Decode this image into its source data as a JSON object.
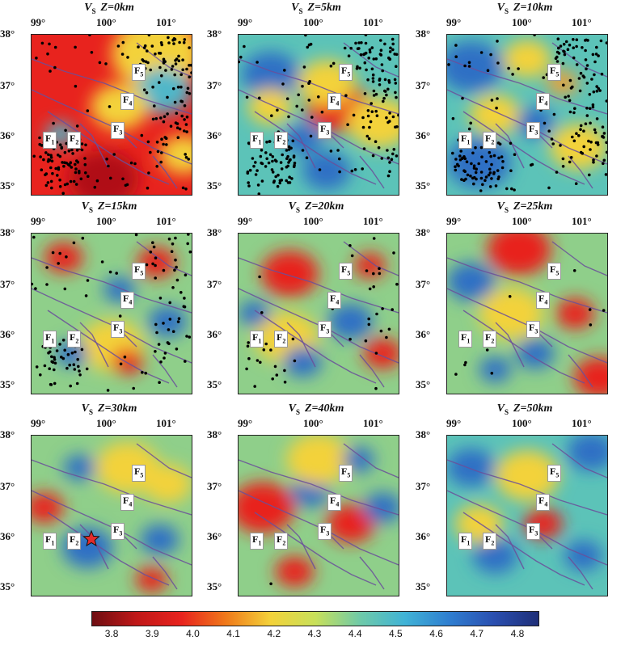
{
  "panels": [
    {
      "vs_label": "V",
      "vs_sub": "S",
      "depth_label": "Z=0km",
      "base": "#e8231e",
      "blobs": [
        [
          "#f3d23a",
          0.78,
          0.12,
          0.28
        ],
        [
          "#4fb7c9",
          0.82,
          0.35,
          0.18
        ],
        [
          "#f3d23a",
          0.55,
          0.45,
          0.18
        ],
        [
          "#b01018",
          0.45,
          0.9,
          0.22
        ],
        [
          "#4fb7c9",
          0.18,
          0.62,
          0.09
        ],
        [
          "#f3d23a",
          0.95,
          0.75,
          0.15
        ]
      ],
      "dots": "dense"
    },
    {
      "vs_label": "V",
      "vs_sub": "S",
      "depth_label": "Z=5km",
      "base": "#5cc3b8",
      "blobs": [
        [
          "#e8231e",
          0.62,
          0.45,
          0.2
        ],
        [
          "#f3d23a",
          0.55,
          0.3,
          0.18
        ],
        [
          "#2f6fc5",
          0.2,
          0.25,
          0.18
        ],
        [
          "#f3d23a",
          0.2,
          0.45,
          0.14
        ],
        [
          "#2f6fc5",
          0.55,
          0.85,
          0.15
        ],
        [
          "#f3d23a",
          0.88,
          0.55,
          0.2
        ],
        [
          "#2f6fc5",
          0.4,
          0.65,
          0.12
        ]
      ],
      "dots": "dense"
    },
    {
      "vs_label": "V",
      "vs_sub": "S",
      "depth_label": "Z=10km",
      "base": "#5cc3b8",
      "blobs": [
        [
          "#2f6fc5",
          0.15,
          0.2,
          0.2
        ],
        [
          "#f3d23a",
          0.5,
          0.15,
          0.15
        ],
        [
          "#f3d23a",
          0.3,
          0.5,
          0.16
        ],
        [
          "#2f6fc5",
          0.2,
          0.8,
          0.2
        ],
        [
          "#e8a13a",
          0.72,
          0.3,
          0.1
        ],
        [
          "#f3d23a",
          0.82,
          0.7,
          0.18
        ],
        [
          "#2f6fc5",
          0.55,
          0.55,
          0.12
        ]
      ],
      "dots": "dense"
    },
    {
      "vs_label": "V",
      "vs_sub": "S",
      "depth_label": "Z=15km",
      "base": "#8fcf8a",
      "blobs": [
        [
          "#e8231e",
          0.2,
          0.15,
          0.12
        ],
        [
          "#e8231e",
          0.78,
          0.18,
          0.12
        ],
        [
          "#2f6fc5",
          0.55,
          0.35,
          0.1
        ],
        [
          "#f3d23a",
          0.5,
          0.7,
          0.2
        ],
        [
          "#2f6fc5",
          0.85,
          0.55,
          0.12
        ],
        [
          "#e8231e",
          0.6,
          0.8,
          0.1
        ],
        [
          "#2f6fc5",
          0.25,
          0.75,
          0.1
        ]
      ],
      "dots": "medium"
    },
    {
      "vs_label": "V",
      "vs_sub": "S",
      "depth_label": "Z=20km",
      "base": "#8fcf8a",
      "blobs": [
        [
          "#e8231e",
          0.32,
          0.25,
          0.18
        ],
        [
          "#2f6fc5",
          0.7,
          0.55,
          0.14
        ],
        [
          "#e8231e",
          0.82,
          0.2,
          0.1
        ],
        [
          "#f3d23a",
          0.3,
          0.65,
          0.2
        ],
        [
          "#2f6fc5",
          0.4,
          0.8,
          0.12
        ],
        [
          "#e8231e",
          0.9,
          0.75,
          0.12
        ],
        [
          "#2f6fc5",
          0.1,
          0.5,
          0.1
        ]
      ],
      "dots": "sparse"
    },
    {
      "vs_label": "V",
      "vs_sub": "S",
      "depth_label": "Z=25km",
      "base": "#8fcf8a",
      "blobs": [
        [
          "#e8231e",
          0.45,
          0.1,
          0.2
        ],
        [
          "#2f6fc5",
          0.15,
          0.3,
          0.15
        ],
        [
          "#e8231e",
          0.8,
          0.5,
          0.12
        ],
        [
          "#2f6fc5",
          0.55,
          0.75,
          0.12
        ],
        [
          "#e8231e",
          0.95,
          0.9,
          0.16
        ],
        [
          "#f3d23a",
          0.4,
          0.5,
          0.2
        ],
        [
          "#2f6fc5",
          0.3,
          0.85,
          0.1
        ]
      ],
      "dots": "few"
    },
    {
      "vs_label": "V",
      "vs_sub": "S",
      "depth_label": "Z=30km",
      "base": "#8fcf8a",
      "blobs": [
        [
          "#e8231e",
          0.08,
          0.45,
          0.12
        ],
        [
          "#2f6fc5",
          0.35,
          0.7,
          0.16
        ],
        [
          "#f3d23a",
          0.6,
          0.2,
          0.2
        ],
        [
          "#2f6fc5",
          0.8,
          0.65,
          0.12
        ],
        [
          "#f3d23a",
          0.85,
          0.3,
          0.15
        ],
        [
          "#2f6fc5",
          0.3,
          0.2,
          0.1
        ],
        [
          "#e8231e",
          0.75,
          0.9,
          0.1
        ]
      ],
      "dots": "none"
    },
    {
      "vs_label": "V",
      "vs_sub": "S",
      "depth_label": "Z=40km",
      "base": "#8fcf8a",
      "blobs": [
        [
          "#e8231e",
          0.15,
          0.45,
          0.2
        ],
        [
          "#e8231e",
          0.7,
          0.55,
          0.15
        ],
        [
          "#2f6fc5",
          0.45,
          0.35,
          0.12
        ],
        [
          "#f3d23a",
          0.5,
          0.15,
          0.2
        ],
        [
          "#2f6fc5",
          0.75,
          0.15,
          0.1
        ],
        [
          "#e8231e",
          0.35,
          0.85,
          0.12
        ],
        [
          "#2f6fc5",
          0.9,
          0.45,
          0.12
        ]
      ],
      "dots": "one"
    },
    {
      "vs_label": "V",
      "vs_sub": "S",
      "depth_label": "Z=50km",
      "base": "#5cc3b8",
      "blobs": [
        [
          "#2f6fc5",
          0.15,
          0.2,
          0.15
        ],
        [
          "#2f6fc5",
          0.9,
          0.1,
          0.15
        ],
        [
          "#e8231e",
          0.6,
          0.55,
          0.12
        ],
        [
          "#f3d23a",
          0.5,
          0.25,
          0.2
        ],
        [
          "#2f6fc5",
          0.3,
          0.75,
          0.14
        ],
        [
          "#f3d23a",
          0.2,
          0.55,
          0.15
        ],
        [
          "#2f6fc5",
          0.85,
          0.75,
          0.12
        ]
      ],
      "dots": "none"
    }
  ],
  "lon_labels": [
    "99°",
    "100°",
    "101°"
  ],
  "lat_labels": [
    "38°",
    "37°",
    "36°",
    "35°"
  ],
  "fault_labels": [
    {
      "text": "F",
      "sub": "1"
    },
    {
      "text": "F",
      "sub": "2"
    },
    {
      "text": "F",
      "sub": "3"
    },
    {
      "text": "F",
      "sub": "4"
    },
    {
      "text": "F",
      "sub": "5"
    }
  ],
  "colorbar": {
    "ticks": [
      "3.8",
      "3.9",
      "4.0",
      "4.1",
      "4.2",
      "4.3",
      "4.4",
      "4.5",
      "4.6",
      "4.7",
      "4.8"
    ],
    "min": 3.75,
    "max": 4.85,
    "colors": [
      "#6e0e12",
      "#c01818",
      "#e8231e",
      "#f07a1a",
      "#f3d23a",
      "#c8e05a",
      "#6fcaa8",
      "#40b3d6",
      "#2f7ed0",
      "#2a4fb0",
      "#1f2f78"
    ]
  },
  "markers": {
    "star_color": "#e32b2b"
  }
}
